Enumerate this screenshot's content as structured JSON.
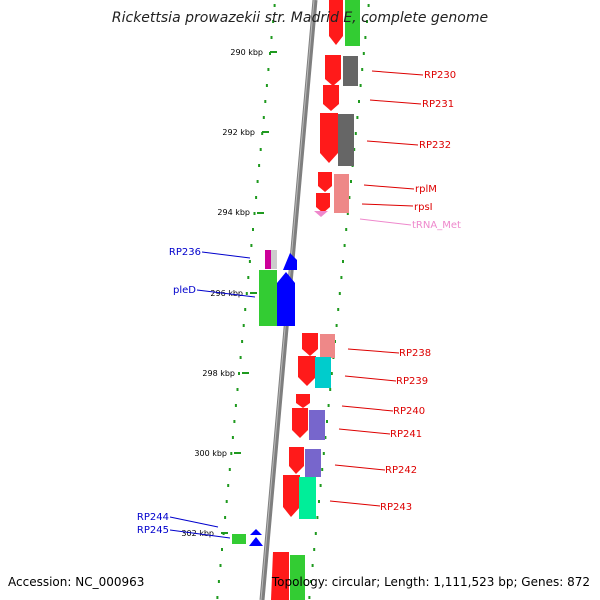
{
  "title": "Rickettsia prowazekii str. Madrid E, complete genome",
  "footer": {
    "accession": "Accession: NC_000963",
    "topology": "Topology: circular; Length: 1,111,523 bp; Genes: 872"
  },
  "ticks": [
    "290 kbp",
    "292 kbp",
    "294 kbp",
    "296 kbp",
    "298 kbp",
    "300 kbp",
    "302 kbp"
  ],
  "colors": {
    "backbone": "#808080",
    "dots": "#1f9a1f",
    "right_label": "#dd0000",
    "left_label": "#0000cc",
    "trna_label": "#ee88cc",
    "red": "#ff0000",
    "green": "#33cc33",
    "gray": "#666666",
    "pink": "#ee8888",
    "cyan": "#00cccc",
    "purple": "#7766cc",
    "teal": "#00ee99",
    "blue": "#0000ff",
    "magenta": "#cc0099"
  },
  "genes_right": [
    {
      "name": "RP230",
      "color": "right_label"
    },
    {
      "name": "RP231",
      "color": "right_label"
    },
    {
      "name": "RP232",
      "color": "right_label"
    },
    {
      "name": "rplM",
      "color": "right_label"
    },
    {
      "name": "rpsI",
      "color": "right_label"
    },
    {
      "name": "tRNA_Met",
      "color": "trna_label"
    },
    {
      "name": "RP238",
      "color": "right_label"
    },
    {
      "name": "RP239",
      "color": "right_label"
    },
    {
      "name": "RP240",
      "color": "right_label"
    },
    {
      "name": "RP241",
      "color": "right_label"
    },
    {
      "name": "RP242",
      "color": "right_label"
    },
    {
      "name": "RP243",
      "color": "right_label"
    }
  ],
  "genes_left": [
    {
      "name": "RP236",
      "color": "left_label"
    },
    {
      "name": "pleD",
      "color": "left_label"
    },
    {
      "name": "RP244",
      "color": "left_label"
    },
    {
      "name": "RP245",
      "color": "left_label"
    }
  ]
}
